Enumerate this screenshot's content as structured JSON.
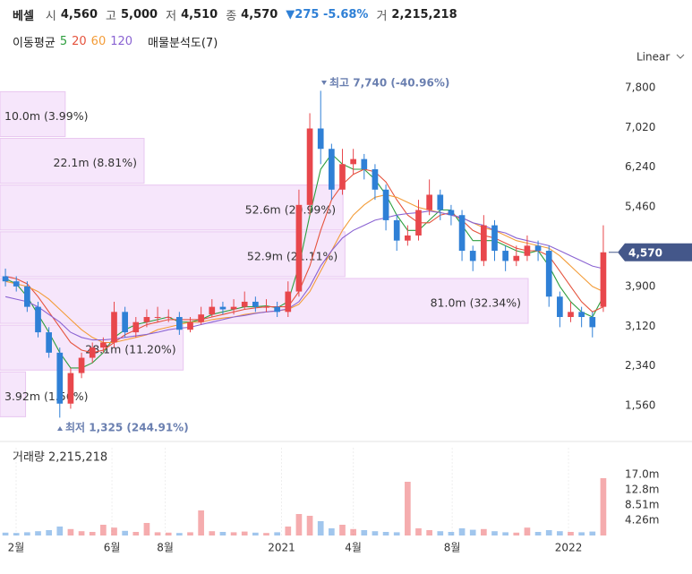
{
  "header": {
    "name": "베셀",
    "fields": [
      {
        "label": "시",
        "value": "4,560"
      },
      {
        "label": "고",
        "value": "5,000"
      },
      {
        "label": "저",
        "value": "4,510"
      },
      {
        "label": "종",
        "value": "4,570"
      }
    ],
    "change": "▼275 -5.68%",
    "volume_label": "거",
    "volume": "2,215,218"
  },
  "chart_data": {
    "type": "candlestick",
    "ma_label": "이동평균",
    "scale_label": "Linear",
    "volume_title": "거래량 2,215,218",
    "annotations": [
      "최고 7,740 (-40.96%)",
      "최저 1,325 (244.91%)"
    ],
    "last_price": {
      "value": 4570,
      "label": "4,570"
    },
    "ylim": [
      910,
      8028
    ],
    "yticks": [
      {
        "value": 1560,
        "label": "1,560"
      },
      {
        "value": 2340,
        "label": "2,340"
      },
      {
        "value": 3120,
        "label": "3,120"
      },
      {
        "value": 3900,
        "label": "3,900"
      },
      {
        "value": 5460,
        "label": "5,460"
      },
      {
        "value": 6240,
        "label": "6,240"
      },
      {
        "value": 7020,
        "label": "7,020"
      },
      {
        "value": 7800,
        "label": "7,800"
      }
    ],
    "xlim": [
      0,
      56
    ],
    "xticks": [
      {
        "value": 1.48,
        "label": "2월"
      },
      {
        "value": 10.3,
        "label": "6월"
      },
      {
        "value": 15.2,
        "label": "8월"
      },
      {
        "value": 25.9,
        "label": "2021"
      },
      {
        "value": 32.5,
        "label": "4월"
      },
      {
        "value": 41.6,
        "label": "8월"
      },
      {
        "value": 52.3,
        "label": "2022"
      }
    ],
    "up_color": "#e8474c",
    "down_color": "#2f80d6",
    "open": [
      4100,
      4000,
      3900,
      3500,
      3000,
      2600,
      1600,
      2200,
      2500,
      2700,
      2800,
      3400,
      3000,
      3200,
      3300,
      3300,
      3300,
      3050,
      3200,
      3350,
      3500,
      3450,
      3500,
      3600,
      3500,
      3500,
      3400,
      3800,
      5500,
      7000,
      6600,
      5800,
      6300,
      6400,
      6200,
      5800,
      5200,
      4800,
      4900,
      5400,
      5700,
      5400,
      5300,
      4600,
      4400,
      5100,
      4600,
      4400,
      4500,
      4700,
      4600,
      3700,
      3300,
      3400,
      3300,
      3500
    ],
    "high": [
      4250,
      4100,
      4000,
      3600,
      3100,
      2700,
      2300,
      2600,
      2800,
      2900,
      3600,
      3500,
      3300,
      3450,
      3500,
      3450,
      3400,
      3300,
      3500,
      3650,
      3600,
      3650,
      3800,
      3700,
      3650,
      3600,
      4000,
      5800,
      7300,
      7740,
      6700,
      6600,
      6600,
      6500,
      6300,
      5900,
      5300,
      5100,
      5600,
      6000,
      5800,
      5500,
      5400,
      4700,
      5300,
      5200,
      4700,
      4700,
      4900,
      4800,
      4700,
      3800,
      3600,
      3500,
      3400,
      5100
    ],
    "low": [
      3900,
      3800,
      3400,
      2900,
      2500,
      1325,
      1500,
      2100,
      2400,
      2600,
      2700,
      2900,
      2900,
      3100,
      3200,
      3200,
      2950,
      3000,
      3150,
      3300,
      3350,
      3350,
      3450,
      3400,
      3400,
      3300,
      3300,
      3700,
      5300,
      6300,
      5600,
      5700,
      6100,
      6000,
      5600,
      5000,
      4600,
      4700,
      4800,
      5300,
      5200,
      5100,
      4400,
      4200,
      4300,
      4400,
      4200,
      4300,
      4400,
      4400,
      3500,
      3100,
      3200,
      3100,
      2900,
      3400
    ],
    "close": [
      4000,
      3900,
      3500,
      3000,
      2600,
      1600,
      2200,
      2500,
      2700,
      2800,
      3400,
      3000,
      3200,
      3300,
      3300,
      3300,
      3050,
      3200,
      3350,
      3500,
      3450,
      3500,
      3600,
      3500,
      3500,
      3400,
      3800,
      5500,
      7000,
      6600,
      5800,
      6300,
      6400,
      6200,
      5800,
      5200,
      4800,
      4900,
      5400,
      5700,
      5400,
      5300,
      4600,
      4400,
      5100,
      4600,
      4400,
      4500,
      4700,
      4600,
      3700,
      3300,
      3400,
      3300,
      3100,
      4570
    ],
    "ma": [
      {
        "name": "5",
        "color": "#2e9e3e",
        "values": [
          4050,
          3950,
          3700,
          3350,
          3000,
          2600,
          2300,
          2300,
          2400,
          2600,
          2900,
          3050,
          3150,
          3200,
          3250,
          3300,
          3200,
          3200,
          3250,
          3350,
          3400,
          3450,
          3500,
          3500,
          3520,
          3480,
          3600,
          4300,
          5300,
          6200,
          6500,
          6300,
          6200,
          6200,
          6000,
          5700,
          5300,
          5000,
          5000,
          5200,
          5400,
          5400,
          5100,
          4800,
          4800,
          4800,
          4700,
          4600,
          4550,
          4600,
          4300,
          3900,
          3600,
          3400,
          3300,
          3700
        ]
      },
      {
        "name": "20",
        "color": "#e5533d",
        "values": [
          4100,
          4050,
          3950,
          3700,
          3400,
          3100,
          2800,
          2650,
          2600,
          2650,
          2800,
          2950,
          3050,
          3150,
          3200,
          3250,
          3250,
          3250,
          3250,
          3300,
          3350,
          3400,
          3450,
          3480,
          3500,
          3500,
          3500,
          3800,
          4300,
          5000,
          5600,
          5900,
          6100,
          6200,
          6150,
          5950,
          5600,
          5300,
          5150,
          5150,
          5300,
          5350,
          5200,
          5000,
          4900,
          4850,
          4750,
          4650,
          4600,
          4600,
          4500,
          4200,
          3900,
          3600,
          3400,
          3500
        ]
      },
      {
        "name": "60",
        "color": "#f39c38",
        "values": [
          4000,
          3950,
          3900,
          3800,
          3650,
          3450,
          3250,
          3050,
          2900,
          2800,
          2800,
          2850,
          2900,
          2950,
          3050,
          3100,
          3150,
          3200,
          3200,
          3250,
          3280,
          3300,
          3350,
          3380,
          3400,
          3420,
          3450,
          3550,
          3800,
          4200,
          4600,
          5000,
          5300,
          5500,
          5650,
          5700,
          5650,
          5550,
          5450,
          5400,
          5350,
          5300,
          5250,
          5150,
          5050,
          5000,
          4900,
          4800,
          4750,
          4700,
          4650,
          4500,
          4300,
          4100,
          3900,
          3800
        ]
      },
      {
        "name": "120",
        "color": "#8a63d2",
        "values": [
          3700,
          3650,
          3600,
          3500,
          3350,
          3200,
          3000,
          2900,
          2850,
          2850,
          2870,
          2900,
          2930,
          2960,
          3000,
          3050,
          3080,
          3100,
          3150,
          3200,
          3250,
          3300,
          3330,
          3370,
          3400,
          3420,
          3460,
          3600,
          3900,
          4300,
          4600,
          4850,
          5000,
          5100,
          5200,
          5250,
          5300,
          5330,
          5350,
          5380,
          5350,
          5300,
          5250,
          5150,
          5100,
          5000,
          4950,
          4850,
          4800,
          4750,
          4700,
          4600,
          4500,
          4400,
          4300,
          4250
        ]
      }
    ],
    "volume": [
      800000,
      700000,
      900000,
      1200000,
      1500000,
      2500000,
      1800000,
      1200000,
      1000000,
      3000000,
      2200000,
      1300000,
      1000000,
      3500000,
      900000,
      800000,
      700000,
      900000,
      7000000,
      1200000,
      1000000,
      900000,
      1100000,
      800000,
      700000,
      900000,
      2500000,
      6000000,
      5500000,
      4000000,
      2000000,
      3000000,
      1800000,
      1500000,
      1200000,
      1000000,
      900000,
      15000000,
      2000000,
      1500000,
      1200000,
      1000000,
      2000000,
      1600000,
      1800000,
      1200000,
      900000,
      800000,
      2200000,
      1000000,
      1500000,
      1200000,
      1000000,
      900000,
      1100000,
      16000000
    ],
    "volume_ylim": [
      0,
      24500000
    ],
    "volume_yticks": [
      {
        "value": 4260000,
        "label": "4.26m"
      },
      {
        "value": 8510000,
        "label": "8.51m"
      },
      {
        "value": 12800000,
        "label": "12.8m"
      },
      {
        "value": 17000000,
        "label": "17.0m"
      }
    ],
    "volume_profile": {
      "name": "매물분석도(7)",
      "color": "#f6e6fb",
      "bins": [
        1325,
        2241,
        3158,
        4074,
        4990,
        5907,
        6823,
        7740
      ],
      "volumes": [
        3920000,
        28100000,
        81000000,
        52900000,
        52600000,
        22100000,
        10000000
      ],
      "value_labels": [
        "3.92m (1.56%)",
        "28.1m (11.20%)",
        "81.0m (32.34%)",
        "52.9m (21.11%)",
        "52.6m (20.99%)",
        "22.1m (8.81%)",
        "10.0m (3.99%)"
      ],
      "xlim": [
        0,
        81000000
      ]
    }
  }
}
